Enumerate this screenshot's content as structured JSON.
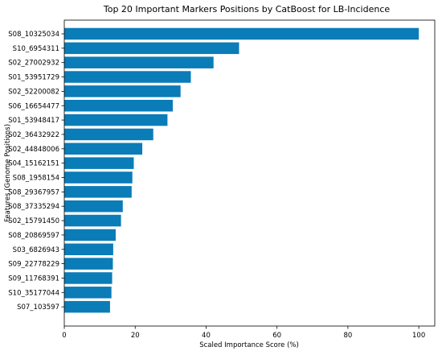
{
  "chart_data": {
    "type": "bar",
    "orientation": "horizontal",
    "title": "Top 20 Important Markers Positions by CatBoost for LB-Incidence",
    "xlabel": "Scaled Importance Score (%)",
    "ylabel": "Features (Genome Positions)",
    "xlim": [
      0,
      104.5
    ],
    "xticks": [
      0,
      20,
      40,
      60,
      80,
      100
    ],
    "grid": false,
    "bar_color": "#0a7cb8",
    "categories": [
      "S08_10325034",
      "S10_6954311",
      "S02_27002932",
      "S01_53951729",
      "S02_52200082",
      "S06_16654477",
      "S01_53948417",
      "S02_36432922",
      "S02_44848006",
      "S04_15162151",
      "S08_1958154",
      "S08_29367957",
      "S08_37335294",
      "S02_15791450",
      "S08_20869597",
      "S03_6826943",
      "S09_22778229",
      "S09_11768391",
      "S10_35177044",
      "S07_103597"
    ],
    "values": [
      100,
      49.3,
      42.1,
      35.7,
      32.8,
      30.6,
      29.1,
      25.1,
      22.0,
      19.6,
      19.2,
      19.0,
      16.5,
      16.0,
      14.5,
      13.8,
      13.7,
      13.5,
      13.3,
      12.9
    ]
  }
}
